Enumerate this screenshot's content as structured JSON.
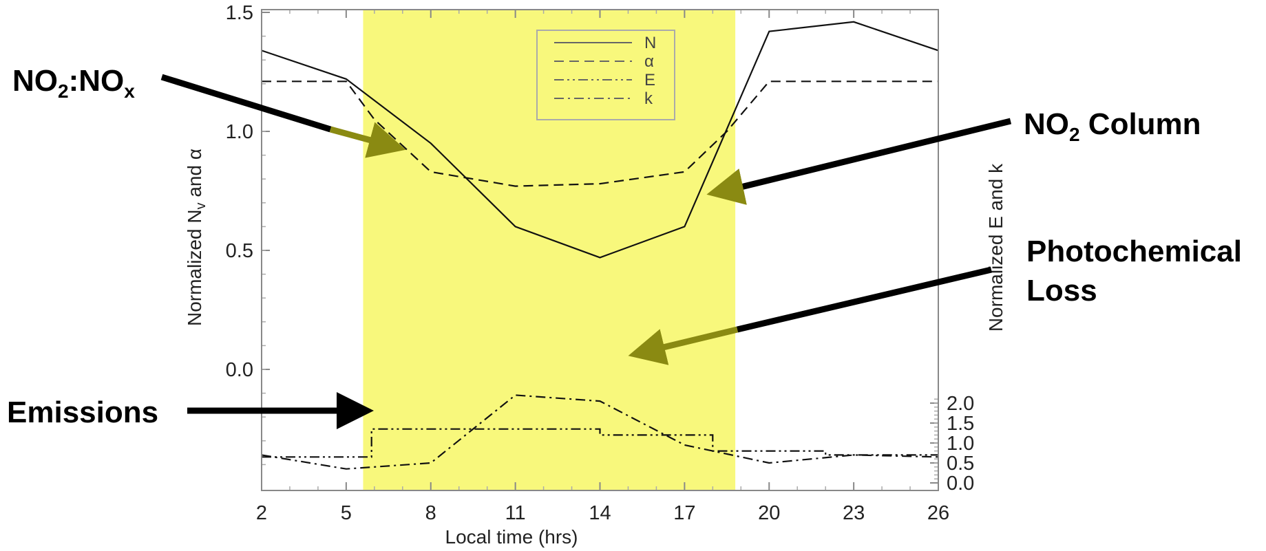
{
  "chart_data": {
    "type": "line",
    "xlabel": "Local time (hrs)",
    "ylabel_left": "Normalized N_v and α",
    "ylabel_right": "Normalized E and k",
    "x_ticks": [
      2,
      5,
      8,
      11,
      14,
      17,
      20,
      23,
      26
    ],
    "xlim": [
      2,
      26
    ],
    "ylim_left": [
      -0.5,
      1.5
    ],
    "y_ticks_left": [
      "1.5",
      "1.0",
      "0.5",
      "0.0"
    ],
    "ylim_right": [
      0.0,
      3.0
    ],
    "y_ticks_right": [
      "2.0",
      "1.5",
      "1.0",
      "0.5",
      "0.0"
    ],
    "daytime_band": [
      5.6,
      18.8
    ],
    "daytime_color": "#f8f87c",
    "legend": [
      "N",
      "α",
      "E",
      "k"
    ],
    "series": [
      {
        "name": "N",
        "axis": "left",
        "style": "solid",
        "x": [
          2,
          5,
          8,
          11,
          14,
          17,
          20,
          23,
          26
        ],
        "y": [
          1.34,
          1.22,
          0.95,
          0.6,
          0.47,
          0.6,
          1.42,
          1.46,
          1.34
        ]
      },
      {
        "name": "α",
        "axis": "left",
        "style": "dashed",
        "x": [
          2,
          5,
          6,
          8,
          11,
          14,
          17,
          18.5,
          20,
          23,
          26
        ],
        "y": [
          1.21,
          1.21,
          1.05,
          0.83,
          0.77,
          0.78,
          0.83,
          1.0,
          1.21,
          1.21,
          1.21
        ]
      },
      {
        "name": "E",
        "axis": "right",
        "style": "dash-dot-dot",
        "step": true,
        "x": [
          2,
          5.9,
          5.9,
          14,
          14,
          18,
          18,
          22,
          22,
          26
        ],
        "y": [
          0.65,
          0.65,
          1.35,
          1.35,
          1.2,
          1.2,
          0.8,
          0.8,
          0.7,
          0.7
        ]
      },
      {
        "name": "k",
        "axis": "right",
        "style": "dash-dot",
        "x": [
          2,
          5,
          8,
          11,
          14,
          17,
          20,
          23,
          26
        ],
        "y": [
          0.7,
          0.35,
          0.5,
          2.2,
          2.05,
          0.95,
          0.5,
          0.7,
          0.65
        ]
      }
    ]
  },
  "callouts": {
    "no2_nox": {
      "main": "NO",
      "sub1": "2",
      "mid": ":NO",
      "sub2": "x"
    },
    "no2_column": {
      "main": "NO",
      "sub": "2",
      "rest": " Column"
    },
    "photochemical": {
      "line1": "Photochemical",
      "line2": "Loss"
    },
    "emissions": "Emissions"
  },
  "colors": {
    "arrow_dark": "#000000",
    "arrow_olive": "#8a8a12",
    "band": "#f8f87c"
  }
}
